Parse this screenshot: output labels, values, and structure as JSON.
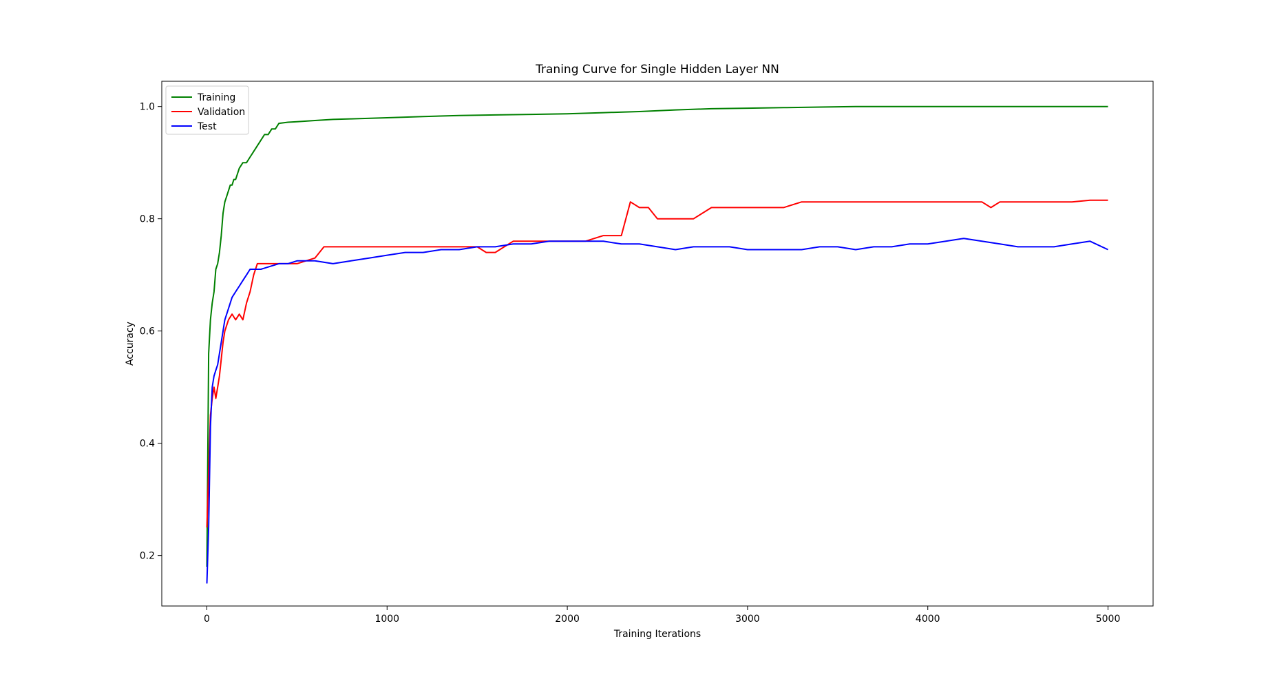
{
  "chart_data": {
    "type": "line",
    "title": "Traning Curve for Single Hidden Layer NN",
    "xlabel": "Training Iterations",
    "ylabel": "Accuracy",
    "xlim": [
      -250,
      5250
    ],
    "ylim": [
      0.11,
      1.045
    ],
    "xticks": [
      0,
      1000,
      2000,
      3000,
      4000,
      5000
    ],
    "yticks": [
      0.2,
      0.4,
      0.6,
      0.8,
      1.0
    ],
    "xtick_labels": [
      "0",
      "1000",
      "2000",
      "3000",
      "4000",
      "5000"
    ],
    "ytick_labels": [
      "0.2",
      "0.4",
      "0.6",
      "0.8",
      "1.0"
    ],
    "grid": false,
    "legend_position": "top-left",
    "series": [
      {
        "name": "Training",
        "color": "#008000",
        "x": [
          0,
          10,
          20,
          30,
          40,
          50,
          60,
          70,
          80,
          90,
          100,
          110,
          120,
          130,
          140,
          150,
          160,
          180,
          200,
          220,
          240,
          260,
          280,
          300,
          320,
          340,
          360,
          380,
          400,
          450,
          500,
          600,
          700,
          800,
          1000,
          1200,
          1400,
          1600,
          1800,
          2000,
          2200,
          2400,
          2600,
          2800,
          3000,
          3200,
          3400,
          3600,
          3800,
          4000,
          4200,
          4400,
          4600,
          4800,
          5000
        ],
        "y": [
          0.18,
          0.56,
          0.62,
          0.65,
          0.67,
          0.71,
          0.72,
          0.74,
          0.77,
          0.81,
          0.83,
          0.84,
          0.85,
          0.86,
          0.86,
          0.87,
          0.87,
          0.89,
          0.9,
          0.9,
          0.91,
          0.92,
          0.93,
          0.94,
          0.95,
          0.95,
          0.96,
          0.96,
          0.97,
          0.972,
          0.973,
          0.975,
          0.977,
          0.978,
          0.98,
          0.982,
          0.984,
          0.985,
          0.986,
          0.987,
          0.989,
          0.991,
          0.994,
          0.996,
          0.997,
          0.998,
          0.999,
          1.0,
          1.0,
          1.0,
          1.0,
          1.0,
          1.0,
          1.0,
          1.0
        ]
      },
      {
        "name": "Validation",
        "color": "#ff0000",
        "x": [
          0,
          10,
          20,
          30,
          40,
          50,
          60,
          70,
          80,
          90,
          100,
          120,
          140,
          160,
          180,
          200,
          220,
          240,
          260,
          280,
          300,
          350,
          400,
          450,
          500,
          600,
          650,
          700,
          800,
          900,
          1000,
          1100,
          1200,
          1300,
          1400,
          1500,
          1550,
          1600,
          1650,
          1700,
          1800,
          1900,
          2000,
          2100,
          2200,
          2250,
          2300,
          2350,
          2400,
          2450,
          2500,
          2550,
          2600,
          2700,
          2800,
          2900,
          3000,
          3100,
          3200,
          3300,
          3400,
          3500,
          3600,
          3700,
          3800,
          3900,
          4000,
          4100,
          4200,
          4300,
          4350,
          4400,
          4500,
          4600,
          4700,
          4800,
          4900,
          5000
        ],
        "y": [
          0.25,
          0.35,
          0.45,
          0.48,
          0.5,
          0.48,
          0.5,
          0.52,
          0.55,
          0.58,
          0.6,
          0.62,
          0.63,
          0.62,
          0.63,
          0.62,
          0.65,
          0.67,
          0.7,
          0.72,
          0.72,
          0.72,
          0.72,
          0.72,
          0.72,
          0.73,
          0.75,
          0.75,
          0.75,
          0.75,
          0.75,
          0.75,
          0.75,
          0.75,
          0.75,
          0.75,
          0.74,
          0.74,
          0.75,
          0.76,
          0.76,
          0.76,
          0.76,
          0.76,
          0.77,
          0.77,
          0.77,
          0.83,
          0.82,
          0.82,
          0.8,
          0.8,
          0.8,
          0.8,
          0.82,
          0.82,
          0.82,
          0.82,
          0.82,
          0.83,
          0.83,
          0.83,
          0.83,
          0.83,
          0.83,
          0.83,
          0.83,
          0.83,
          0.83,
          0.83,
          0.82,
          0.83,
          0.83,
          0.83,
          0.83,
          0.83,
          0.833,
          0.833
        ]
      },
      {
        "name": "Test",
        "color": "#0000ff",
        "x": [
          0,
          10,
          20,
          30,
          40,
          50,
          60,
          70,
          80,
          90,
          100,
          120,
          140,
          160,
          180,
          200,
          220,
          240,
          260,
          280,
          300,
          350,
          400,
          450,
          500,
          600,
          700,
          800,
          900,
          1000,
          1100,
          1200,
          1300,
          1400,
          1500,
          1600,
          1700,
          1800,
          1900,
          2000,
          2100,
          2200,
          2300,
          2400,
          2500,
          2600,
          2700,
          2800,
          2900,
          3000,
          3100,
          3200,
          3300,
          3400,
          3500,
          3600,
          3700,
          3800,
          3900,
          4000,
          4100,
          4200,
          4300,
          4400,
          4500,
          4600,
          4700,
          4800,
          4900,
          5000
        ],
        "y": [
          0.15,
          0.25,
          0.43,
          0.5,
          0.52,
          0.53,
          0.54,
          0.56,
          0.58,
          0.6,
          0.62,
          0.64,
          0.66,
          0.67,
          0.68,
          0.69,
          0.7,
          0.71,
          0.71,
          0.71,
          0.71,
          0.715,
          0.72,
          0.72,
          0.725,
          0.725,
          0.72,
          0.725,
          0.73,
          0.735,
          0.74,
          0.74,
          0.745,
          0.745,
          0.75,
          0.75,
          0.755,
          0.755,
          0.76,
          0.76,
          0.76,
          0.76,
          0.755,
          0.755,
          0.75,
          0.745,
          0.75,
          0.75,
          0.75,
          0.745,
          0.745,
          0.745,
          0.745,
          0.75,
          0.75,
          0.745,
          0.75,
          0.75,
          0.755,
          0.755,
          0.76,
          0.765,
          0.76,
          0.755,
          0.75,
          0.75,
          0.75,
          0.755,
          0.76,
          0.745
        ]
      }
    ]
  }
}
